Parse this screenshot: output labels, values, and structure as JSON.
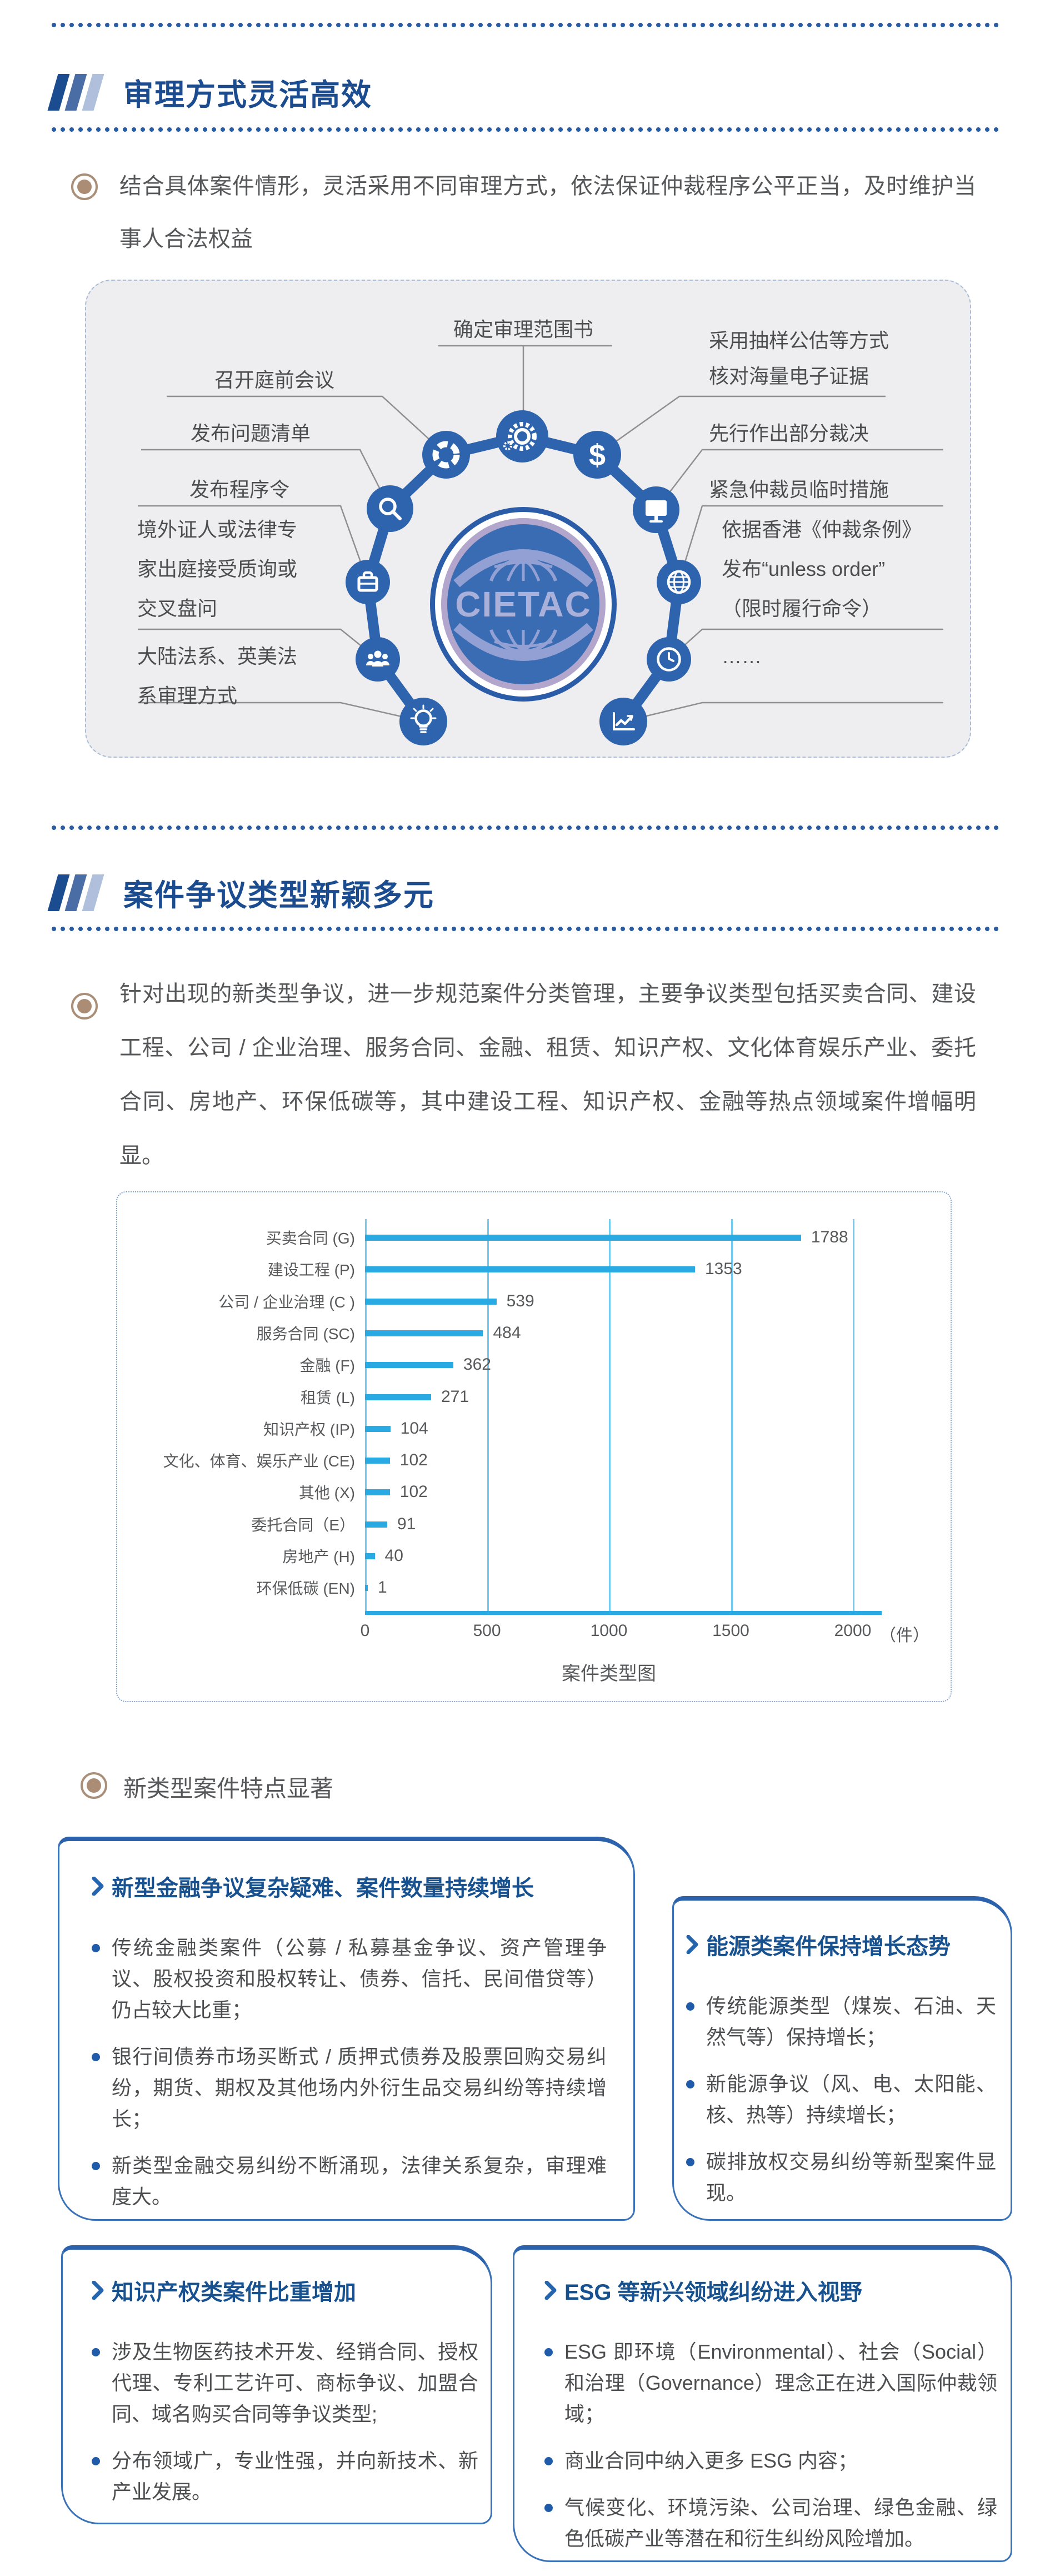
{
  "section1": {
    "title": "审理方式灵活高效",
    "paragraph": "结合具体案件情形，灵活采用不同审理方式，依法保证仲裁程序公平正当，及时维护当事人合法权益"
  },
  "diagram": {
    "center_logo": "CIETAC",
    "items": [
      {
        "label": "确定审理范围书",
        "icon": "gear-icon"
      },
      {
        "label": "召开庭前会议",
        "icon": "donut-chart-icon"
      },
      {
        "label": "采用抽样公估等方式\n核对海量电子证据",
        "icon": "dollar-icon"
      },
      {
        "label": "发布问题清单",
        "icon": "magnifier-icon"
      },
      {
        "label": "先行作出部分裁决",
        "icon": "monitor-icon"
      },
      {
        "label": "发布程序令",
        "icon": "briefcase-icon"
      },
      {
        "label": "紧急仲裁员临时措施",
        "icon": "globe-icon"
      },
      {
        "label": "境外证人或法律专\n家出庭接受质询或\n交叉盘问",
        "icon": "people-icon"
      },
      {
        "label": "依据香港《仲裁条例》\n发布“unless order”\n（限时履行命令）",
        "icon": "clock-icon"
      },
      {
        "label": "大陆法系、英美法\n系审理方式",
        "icon": "lightbulb-icon"
      },
      {
        "label": "……",
        "icon": "line-chart-icon"
      },
      {
        "dollar_glyph": "$"
      }
    ]
  },
  "section2": {
    "title": "案件争议类型新颖多元",
    "paragraph": "针对出现的新类型争议，进一步规范案件分类管理，主要争议类型包括买卖合同、建设工程、公司 / 企业治理、服务合同、金融、租赁、知识产权、文化体育娱乐产业、委托合同、房地产、环保低碳等，其中建设工程、知识产权、金融等热点领域案件增幅明显。",
    "feature_bullet": "新类型案件特点显著"
  },
  "chart_data": {
    "type": "bar",
    "orientation": "horizontal",
    "title": "案件类型图",
    "categories": [
      "买卖合同 (G)",
      "建设工程 (P)",
      "公司 / 企业治理 (C )",
      "服务合同 (SC)",
      "金融 (F)",
      "租赁 (L)",
      "知识产权 (IP)",
      "文化、体育、娱乐产业 (CE)",
      "其他 (X)",
      "委托合同（E）",
      "房地产 (H)",
      "环保低碳 (EN)"
    ],
    "values": [
      1788,
      1353,
      539,
      484,
      362,
      271,
      104,
      102,
      102,
      91,
      40,
      1
    ],
    "x_ticks": [
      "0",
      "500",
      "1000",
      "1500",
      "2000"
    ],
    "unit_label": "（件）",
    "xlim": [
      0,
      2100
    ],
    "grid": true,
    "bar_color": "#29aae3"
  },
  "boxes": [
    {
      "header": "新型金融争议复杂疑难、案件数量持续增长",
      "bullets": [
        "传统金融类案件（公募 / 私募基金争议、资产管理争议、股权投资和股权转让、债券、信托、民间借贷等）仍占较大比重；",
        "银行间债券市场买断式 / 质押式债券及股票回购交易纠纷，期货、期权及其他场内外衍生品交易纠纷等持续增长；",
        "新类型金融交易纠纷不断涌现，法律关系复杂，审理难度大。"
      ]
    },
    {
      "header": "能源类案件保持增长态势",
      "bullets": [
        "传统能源类型（煤炭、石油、天然气等）保持增长；",
        "新能源争议（风、电、太阳能、核、热等）持续增长；",
        "碳排放权交易纠纷等新型案件显现。"
      ]
    },
    {
      "header": "知识产权类案件比重增加",
      "bullets": [
        "涉及生物医药技术开发、经销合同、授权代理、专利工艺许可、商标争议、加盟合同、域名购买合同等争议类型;",
        "分布领域广，专业性强，并向新技术、新产业发展。"
      ]
    },
    {
      "header": "ESG 等新兴领域纠纷进入视野",
      "bullets": [
        "ESG 即环境（Environmental）、社会（Social）和治理（Governance）理念正在进入国际仲裁领域；",
        "商业合同中纳入更多 ESG 内容；",
        "气候变化、环境污染、公司治理、绿色金融、绿色低碳产业等潜在和衍生纠纷风险增加。"
      ]
    }
  ],
  "colors": {
    "header_blue": "#1b4c90",
    "dot_blue": "#2a5ca3",
    "circle_blue": "#2e64ae",
    "logo_fill": "#3a6cb4",
    "logo_ring": "#b2a6cd",
    "logo_art": "#93a0d4",
    "bar_cyan": "#29aae3",
    "grid_cyan": "#6ecbf2",
    "bullet_brown": "#ab8d76",
    "text_gray": "#4d4e50",
    "box_border": "#3a72b7"
  }
}
